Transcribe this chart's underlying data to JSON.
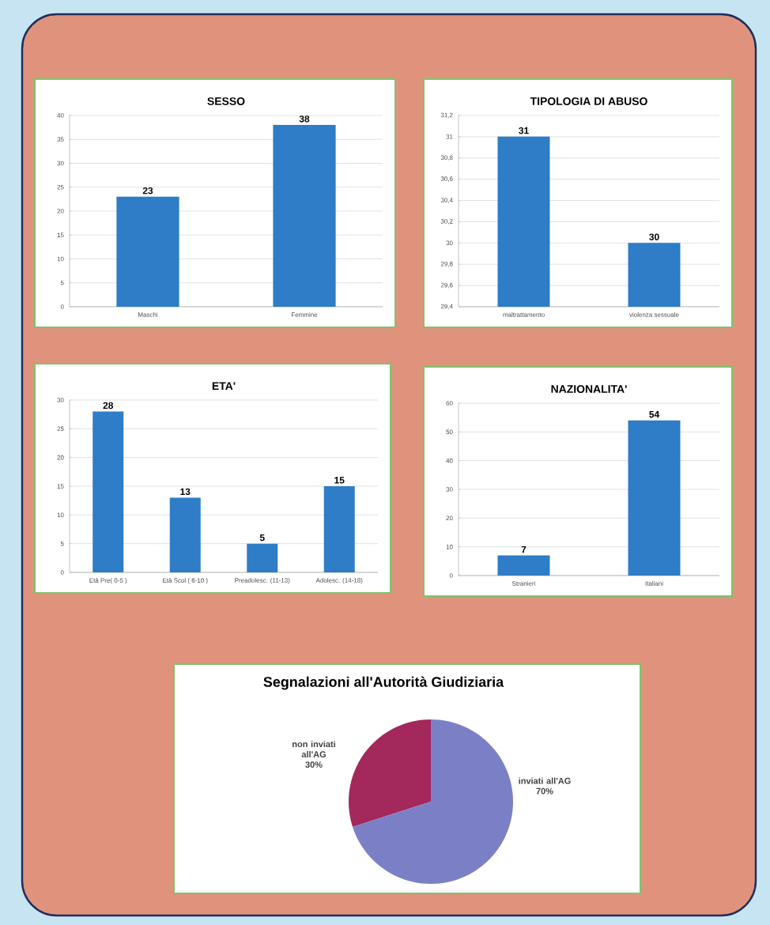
{
  "chart_data": [
    {
      "type": "bar",
      "title": "SESSO",
      "categories": [
        "Maschi",
        "Femmine"
      ],
      "values": [
        23,
        38
      ],
      "color": "#2e7dc6",
      "ylim": [
        0,
        40
      ],
      "yticks": [
        0,
        5,
        10,
        15,
        20,
        25,
        30,
        35,
        40
      ],
      "grid": "y",
      "data_labels": true
    },
    {
      "type": "bar",
      "title": "TIPOLOGIA DI ABUSO",
      "categories": [
        "maltrattamento",
        "violenza sessuale"
      ],
      "values": [
        31,
        30
      ],
      "color": "#2e7dc6",
      "ylim": [
        29.4,
        31.2
      ],
      "yticks": [
        {
          "value": 29.4,
          "label": "29,4"
        },
        {
          "value": 29.6,
          "label": "29,6"
        },
        {
          "value": 29.8,
          "label": "29,8"
        },
        30,
        {
          "value": 30.2,
          "label": "30,2"
        },
        {
          "value": 30.4,
          "label": "30,4"
        },
        {
          "value": 30.6,
          "label": "30,6"
        },
        {
          "value": 30.8,
          "label": "30,8"
        },
        31,
        {
          "value": 31.2,
          "label": "31,2"
        }
      ],
      "grid": "y",
      "data_labels": true
    },
    {
      "type": "bar",
      "title": "ETA'",
      "categories": [
        "Età Pre( 0-5 )",
        "Età Scol ( 6-10 )",
        "Preadolesc. (11-13)",
        "Adolesc. (14-18)"
      ],
      "values": [
        28,
        13,
        5,
        15
      ],
      "color": "#2e7dc6",
      "ylim": [
        0,
        30
      ],
      "yticks": [
        0,
        5,
        10,
        15,
        20,
        25,
        30
      ],
      "grid": "y",
      "data_labels": true
    },
    {
      "type": "bar",
      "title": "NAZIONALITA'",
      "categories": [
        "Stranieri",
        "Italiani"
      ],
      "values": [
        7,
        54
      ],
      "color": "#2e7dc6",
      "ylim": [
        0,
        60
      ],
      "yticks": [
        0,
        10,
        20,
        30,
        40,
        50,
        60
      ],
      "grid": "y",
      "data_labels": true
    },
    {
      "type": "pie",
      "title": "Segnalazioni all'Autorità Giudiziaria",
      "categories": [
        "non inviati all'AG",
        "inviati all'AG"
      ],
      "values": [
        30,
        70
      ],
      "value_labels": [
        "30%",
        "70%"
      ],
      "colors": [
        "#a3285c",
        "#7b80c6"
      ]
    }
  ]
}
